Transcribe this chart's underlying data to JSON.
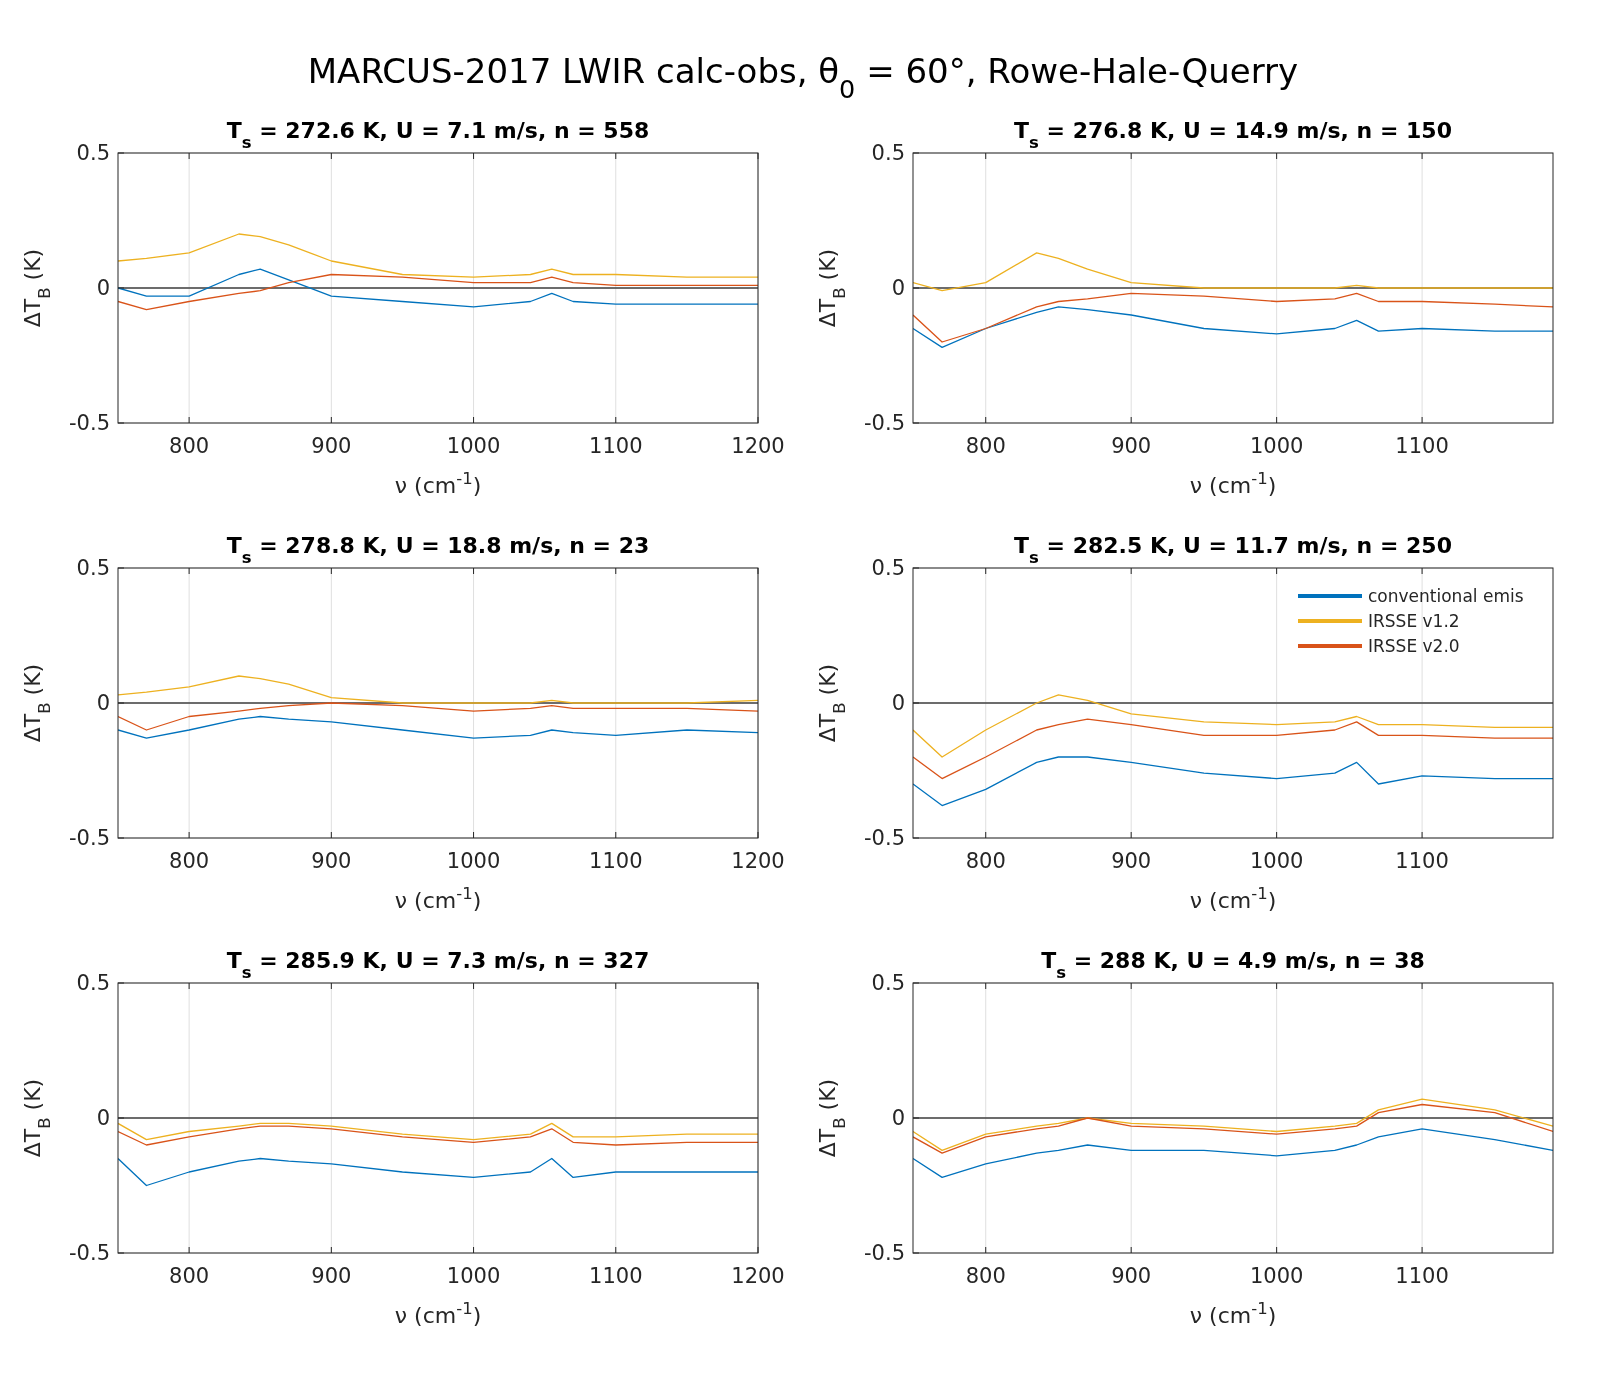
{
  "chart_data": [
    {
      "type": "line",
      "title": "T$_{s}$ = 272.6 K, U = 7.1 m/s, n = 558",
      "annotations": [
        "MARCUS-2017 LWIR calc-obs, θ$_{0}$ = 60°, Rowe-Hale-Querry"
      ],
      "xlabel": "ν (cm$^{-1}$)",
      "ylabel": "ΔT$_{B}$ (K)",
      "xlim": [
        750,
        1200
      ],
      "xticks": [
        800,
        900,
        1000,
        1100,
        1200
      ],
      "ylim": [
        -0.5,
        0.5
      ],
      "yticks": [
        -0.5,
        0,
        0.5
      ],
      "grid": true,
      "line_style": "solid",
      "ref_lines": [
        {
          "axis": "y",
          "value": 0,
          "color": "#404040"
        }
      ],
      "x": [
        750,
        770,
        800,
        835,
        850,
        870,
        900,
        950,
        1000,
        1040,
        1055,
        1070,
        1100,
        1150,
        1200
      ],
      "series": [
        {
          "color": "#0072bd",
          "values": [
            0,
            -0.03,
            -0.03,
            0.05,
            0.07,
            0.03,
            -0.03,
            -0.05,
            -0.07,
            -0.05,
            -0.02,
            -0.05,
            -0.06,
            -0.06,
            -0.06
          ]
        },
        {
          "color": "#edb120",
          "values": [
            0.1,
            0.11,
            0.13,
            0.2,
            0.19,
            0.16,
            0.1,
            0.05,
            0.04,
            0.05,
            0.07,
            0.05,
            0.05,
            0.04,
            0.04
          ]
        },
        {
          "color": "#d95319",
          "values": [
            -0.05,
            -0.08,
            -0.05,
            -0.02,
            -0.01,
            0.02,
            0.05,
            0.04,
            0.02,
            0.02,
            0.04,
            0.02,
            0.01,
            0.01,
            0.01
          ]
        }
      ]
    },
    {
      "type": "line",
      "title": "T$_{s}$ = 276.8 K, U = 14.9 m/s, n = 150",
      "xlabel": "ν (cm$^{-1}$)",
      "ylabel": "ΔT$_{B}$ (K)",
      "xlim": [
        750,
        1190
      ],
      "xticks": [
        800,
        900,
        1000,
        1100
      ],
      "ylim": [
        -0.5,
        0.5
      ],
      "yticks": [
        -0.5,
        0,
        0.5
      ],
      "grid": true,
      "line_style": "solid",
      "ref_lines": [
        {
          "axis": "y",
          "value": 0,
          "color": "#404040"
        }
      ],
      "x": [
        750,
        770,
        800,
        835,
        850,
        870,
        900,
        950,
        1000,
        1040,
        1055,
        1070,
        1100,
        1150,
        1190
      ],
      "series": [
        {
          "color": "#0072bd",
          "values": [
            -0.15,
            -0.22,
            -0.15,
            -0.09,
            -0.07,
            -0.08,
            -0.1,
            -0.15,
            -0.17,
            -0.15,
            -0.12,
            -0.16,
            -0.15,
            -0.16,
            -0.16
          ]
        },
        {
          "color": "#edb120",
          "values": [
            0.02,
            -0.01,
            0.02,
            0.13,
            0.11,
            0.07,
            0.02,
            0,
            0,
            0,
            0.01,
            0,
            0,
            0,
            0
          ]
        },
        {
          "color": "#d95319",
          "values": [
            -0.1,
            -0.2,
            -0.15,
            -0.07,
            -0.05,
            -0.04,
            -0.02,
            -0.03,
            -0.05,
            -0.04,
            -0.02,
            -0.05,
            -0.05,
            -0.06,
            -0.07
          ]
        }
      ]
    },
    {
      "type": "line",
      "title": "T$_{s}$ = 278.8 K, U = 18.8 m/s, n = 23",
      "xlabel": "ν (cm$^{-1}$)",
      "ylabel": "ΔT$_{B}$ (K)",
      "xlim": [
        750,
        1200
      ],
      "xticks": [
        800,
        900,
        1000,
        1100,
        1200
      ],
      "ylim": [
        -0.5,
        0.5
      ],
      "yticks": [
        -0.5,
        0,
        0.5
      ],
      "grid": true,
      "line_style": "solid",
      "ref_lines": [
        {
          "axis": "y",
          "value": 0,
          "color": "#404040"
        }
      ],
      "x": [
        750,
        770,
        800,
        835,
        850,
        870,
        900,
        950,
        1000,
        1040,
        1055,
        1070,
        1100,
        1150,
        1200
      ],
      "series": [
        {
          "color": "#0072bd",
          "values": [
            -0.1,
            -0.13,
            -0.1,
            -0.06,
            -0.05,
            -0.06,
            -0.07,
            -0.1,
            -0.13,
            -0.12,
            -0.1,
            -0.11,
            -0.12,
            -0.1,
            -0.11
          ]
        },
        {
          "color": "#edb120",
          "values": [
            0.03,
            0.04,
            0.06,
            0.1,
            0.09,
            0.07,
            0.02,
            0,
            0,
            0,
            0.01,
            0,
            0,
            0,
            0.01
          ]
        },
        {
          "color": "#d95319",
          "values": [
            -0.05,
            -0.1,
            -0.05,
            -0.03,
            -0.02,
            -0.01,
            0,
            -0.01,
            -0.03,
            -0.02,
            -0.01,
            -0.02,
            -0.02,
            -0.02,
            -0.03
          ]
        }
      ]
    },
    {
      "type": "line",
      "title": "T$_{s}$ = 282.5 K, U = 11.7 m/s, n = 250",
      "xlabel": "ν (cm$^{-1}$)",
      "ylabel": "ΔT$_{B}$ (K)",
      "xlim": [
        750,
        1190
      ],
      "xticks": [
        800,
        900,
        1000,
        1100
      ],
      "ylim": [
        -0.5,
        0.5
      ],
      "yticks": [
        -0.5,
        0,
        0.5
      ],
      "grid": true,
      "line_style": "solid",
      "legend": "top right",
      "ref_lines": [
        {
          "axis": "y",
          "value": 0,
          "color": "#404040"
        }
      ],
      "x": [
        750,
        770,
        800,
        835,
        850,
        870,
        900,
        950,
        1000,
        1040,
        1055,
        1070,
        1100,
        1150,
        1190
      ],
      "series": [
        {
          "name": "conventional emis",
          "color": "#0072bd",
          "values": [
            -0.3,
            -0.38,
            -0.32,
            -0.22,
            -0.2,
            -0.2,
            -0.22,
            -0.26,
            -0.28,
            -0.26,
            -0.22,
            -0.3,
            -0.27,
            -0.28,
            -0.28
          ]
        },
        {
          "name": "IRSSE v1.2",
          "color": "#edb120",
          "values": [
            -0.1,
            -0.2,
            -0.1,
            0,
            0.03,
            0.01,
            -0.04,
            -0.07,
            -0.08,
            -0.07,
            -0.05,
            -0.08,
            -0.08,
            -0.09,
            -0.09
          ]
        },
        {
          "name": "IRSSE v2.0",
          "color": "#d95319",
          "values": [
            -0.2,
            -0.28,
            -0.2,
            -0.1,
            -0.08,
            -0.06,
            -0.08,
            -0.12,
            -0.12,
            -0.1,
            -0.07,
            -0.12,
            -0.12,
            -0.13,
            -0.13
          ]
        }
      ]
    },
    {
      "type": "line",
      "title": "T$_{s}$ = 285.9 K, U = 7.3 m/s, n = 327",
      "xlabel": "ν (cm$^{-1}$)",
      "ylabel": "ΔT$_{B}$ (K)",
      "xlim": [
        750,
        1200
      ],
      "xticks": [
        800,
        900,
        1000,
        1100,
        1200
      ],
      "ylim": [
        -0.5,
        0.5
      ],
      "yticks": [
        -0.5,
        0,
        0.5
      ],
      "grid": true,
      "line_style": "solid",
      "ref_lines": [
        {
          "axis": "y",
          "value": 0,
          "color": "#404040"
        }
      ],
      "x": [
        750,
        770,
        800,
        835,
        850,
        870,
        900,
        950,
        1000,
        1040,
        1055,
        1070,
        1100,
        1150,
        1200
      ],
      "series": [
        {
          "color": "#0072bd",
          "values": [
            -0.15,
            -0.25,
            -0.2,
            -0.16,
            -0.15,
            -0.16,
            -0.17,
            -0.2,
            -0.22,
            -0.2,
            -0.15,
            -0.22,
            -0.2,
            -0.2,
            -0.2
          ]
        },
        {
          "color": "#edb120",
          "values": [
            -0.02,
            -0.08,
            -0.05,
            -0.03,
            -0.02,
            -0.02,
            -0.03,
            -0.06,
            -0.08,
            -0.06,
            -0.02,
            -0.07,
            -0.07,
            -0.06,
            -0.06
          ]
        },
        {
          "color": "#d95319",
          "values": [
            -0.05,
            -0.1,
            -0.07,
            -0.04,
            -0.03,
            -0.03,
            -0.04,
            -0.07,
            -0.09,
            -0.07,
            -0.04,
            -0.09,
            -0.1,
            -0.09,
            -0.09
          ]
        }
      ]
    },
    {
      "type": "line",
      "title": "T$_{s}$ = 288 K, U = 4.9 m/s, n = 38",
      "xlabel": "ν (cm$^{-1}$)",
      "ylabel": "ΔT$_{B}$ (K)",
      "xlim": [
        750,
        1190
      ],
      "xticks": [
        800,
        900,
        1000,
        1100
      ],
      "ylim": [
        -0.5,
        0.5
      ],
      "yticks": [
        -0.5,
        0,
        0.5
      ],
      "grid": true,
      "line_style": "solid",
      "ref_lines": [
        {
          "axis": "y",
          "value": 0,
          "color": "#404040"
        }
      ],
      "x": [
        750,
        770,
        800,
        835,
        850,
        870,
        900,
        950,
        1000,
        1040,
        1055,
        1070,
        1100,
        1150,
        1190
      ],
      "series": [
        {
          "color": "#0072bd",
          "values": [
            -0.15,
            -0.22,
            -0.17,
            -0.13,
            -0.12,
            -0.1,
            -0.12,
            -0.12,
            -0.14,
            -0.12,
            -0.1,
            -0.07,
            -0.04,
            -0.08,
            -0.12
          ]
        },
        {
          "color": "#edb120",
          "values": [
            -0.05,
            -0.12,
            -0.06,
            -0.03,
            -0.02,
            0,
            -0.02,
            -0.03,
            -0.05,
            -0.03,
            -0.02,
            0.03,
            0.07,
            0.03,
            -0.03
          ]
        },
        {
          "color": "#d95319",
          "values": [
            -0.07,
            -0.13,
            -0.07,
            -0.04,
            -0.03,
            0,
            -0.03,
            -0.04,
            -0.06,
            -0.04,
            -0.03,
            0.02,
            0.05,
            0.02,
            -0.05
          ]
        }
      ]
    }
  ]
}
